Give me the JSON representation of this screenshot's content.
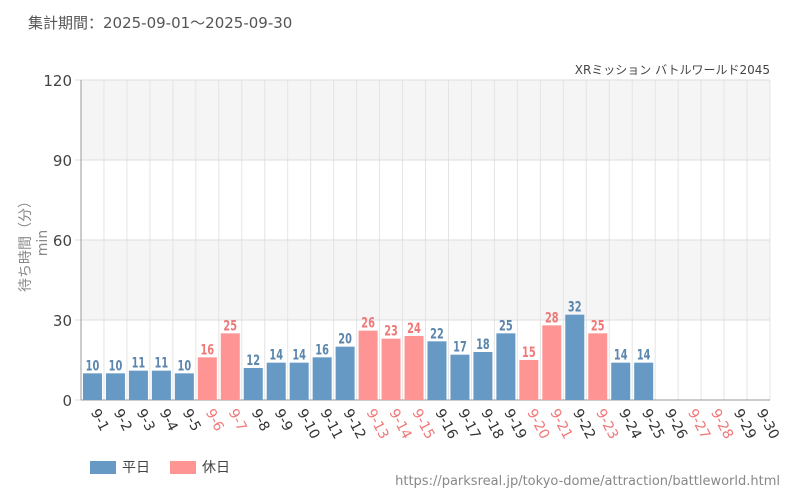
{
  "header": {
    "period": "集計期間：2025-09-01～2025-09-30"
  },
  "chart_data": {
    "type": "bar",
    "title": "XRミッション バトルワールド2045",
    "ylabel": "待ち時間（分）min",
    "xlabel": "",
    "ylim": [
      0,
      120
    ],
    "yticks": [
      0,
      30,
      60,
      90,
      120
    ],
    "categories": [
      "9-1",
      "9-2",
      "9-3",
      "9-4",
      "9-5",
      "9-6",
      "9-7",
      "9-8",
      "9-9",
      "9-10",
      "9-11",
      "9-12",
      "9-13",
      "9-14",
      "9-15",
      "9-16",
      "9-17",
      "9-18",
      "9-19",
      "9-20",
      "9-21",
      "9-22",
      "9-23",
      "9-24",
      "9-25",
      "9-26",
      "9-27",
      "9-28",
      "9-29",
      "9-30"
    ],
    "values": [
      10,
      10,
      11,
      11,
      10,
      16,
      25,
      12,
      14,
      14,
      16,
      20,
      26,
      23,
      24,
      22,
      17,
      18,
      25,
      15,
      28,
      32,
      25,
      14,
      14,
      null,
      null,
      null,
      null,
      null
    ],
    "day_type": [
      "weekday",
      "weekday",
      "weekday",
      "weekday",
      "weekday",
      "holiday",
      "holiday",
      "weekday",
      "weekday",
      "weekday",
      "weekday",
      "weekday",
      "holiday",
      "holiday",
      "holiday",
      "weekday",
      "weekday",
      "weekday",
      "weekday",
      "holiday",
      "holiday",
      "weekday",
      "holiday",
      "weekday",
      "weekday",
      "weekday",
      "holiday",
      "holiday",
      "weekday",
      "weekday"
    ],
    "colors": {
      "weekday": "#6699c4",
      "holiday": "#ff9494",
      "weekday_text": "#5b86ad",
      "holiday_text": "#f07878"
    },
    "grid": true,
    "legend": {
      "placement": "bottom-left",
      "items": [
        {
          "label": "平日",
          "key": "weekday"
        },
        {
          "label": "休日",
          "key": "holiday"
        }
      ]
    }
  },
  "footer": {
    "source": "https://parksreal.jp/tokyo-dome/attraction/battleworld.html"
  }
}
